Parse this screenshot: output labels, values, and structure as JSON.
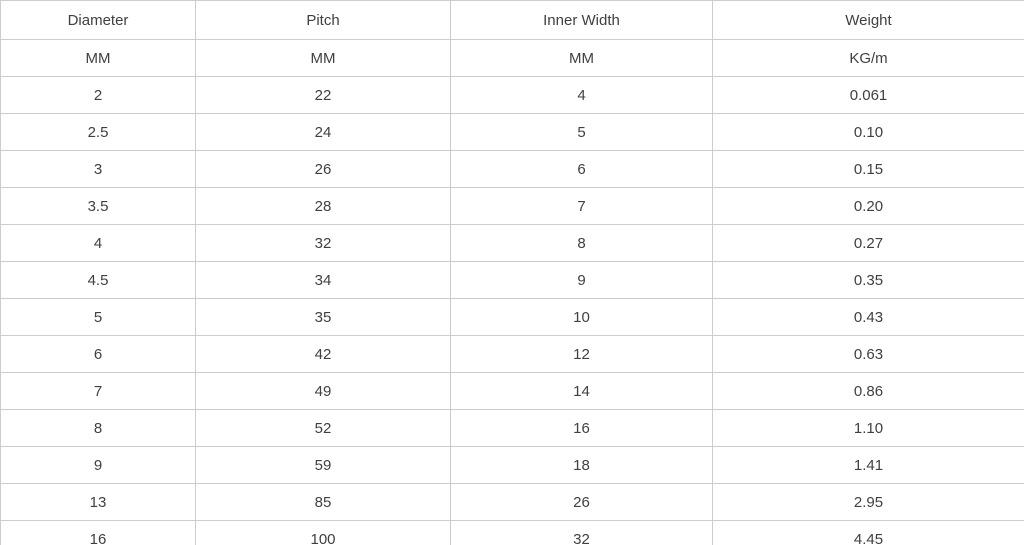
{
  "chart_data": {
    "type": "table",
    "title": "",
    "columns": [
      "Diameter",
      "Pitch",
      "Inner Width",
      "Weight"
    ],
    "units": [
      "MM",
      "MM",
      "MM",
      "KG/m"
    ],
    "rows": [
      [
        "2",
        "22",
        "4",
        "0.061"
      ],
      [
        "2.5",
        "24",
        "5",
        "0.10"
      ],
      [
        "3",
        "26",
        "6",
        "0.15"
      ],
      [
        "3.5",
        "28",
        "7",
        "0.20"
      ],
      [
        "4",
        "32",
        "8",
        "0.27"
      ],
      [
        "4.5",
        "34",
        "9",
        "0.35"
      ],
      [
        "5",
        "35",
        "10",
        "0.43"
      ],
      [
        "6",
        "42",
        "12",
        "0.63"
      ],
      [
        "7",
        "49",
        "14",
        "0.86"
      ],
      [
        "8",
        "52",
        "16",
        "1.10"
      ],
      [
        "9",
        "59",
        "18",
        "1.41"
      ],
      [
        "13",
        "85",
        "26",
        "2.95"
      ],
      [
        "16",
        "100",
        "32",
        "4.45"
      ]
    ]
  },
  "colors": {
    "border": "#cccccc",
    "text": "#404040",
    "background": "#ffffff"
  }
}
